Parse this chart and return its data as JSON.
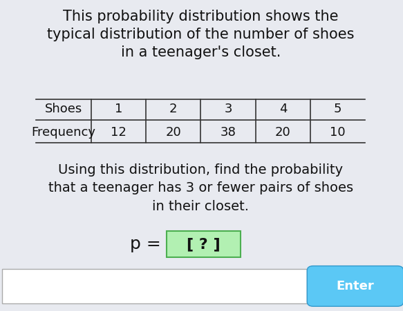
{
  "title": "This probability distribution shows the\ntypical distribution of the number of shoes\nin a teenager's closet.",
  "table_headers": [
    "Shoes",
    "1",
    "2",
    "3",
    "4",
    "5"
  ],
  "table_row_label": "Frequency",
  "table_values": [
    "12",
    "20",
    "38",
    "20",
    "10"
  ],
  "question_text": "Using this distribution, find the probability\nthat a teenager has 3 or fewer pairs of shoes\nin their closet.",
  "equation_text": "p = ",
  "answer_box_text": "[ ? ]",
  "bg_color": "#e8eaf0",
  "table_line_color": "#333333",
  "title_fontsize": 15,
  "body_fontsize": 14,
  "table_fontsize": 13,
  "answer_box_bg": "#b2f0b2",
  "answer_box_border": "#4caf50",
  "enter_button_color": "#5bc8f5",
  "enter_button_text": "Enter",
  "input_box_color": "#ffffff",
  "input_box_border": "#aaaaaa"
}
